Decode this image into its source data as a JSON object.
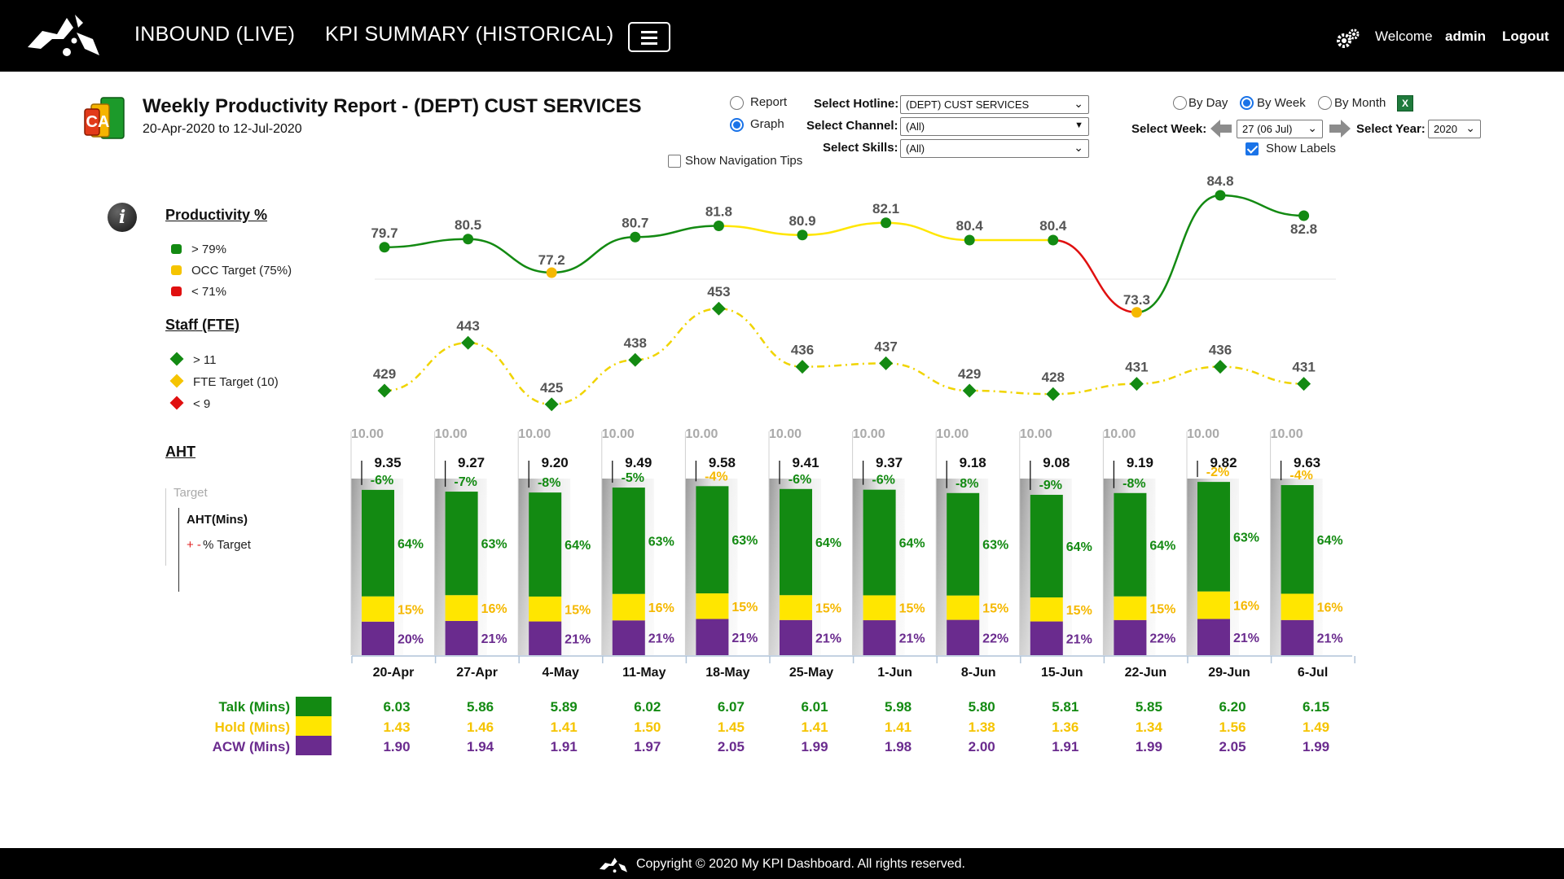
{
  "header": {
    "nav": [
      "INBOUND (LIVE)",
      "KPI SUMMARY (HISTORICAL)"
    ],
    "welcome": "Welcome",
    "user": "admin",
    "logout": "Logout"
  },
  "report": {
    "icon_text": "CA",
    "title": "Weekly Productivity Report - (DEPT) CUST SERVICES",
    "dates": "20-Apr-2020 to 12-Jul-2020"
  },
  "controls": {
    "view_modes": [
      {
        "label": "Report",
        "selected": false
      },
      {
        "label": "Graph",
        "selected": true
      }
    ],
    "show_tips": {
      "label": "Show Navigation Tips",
      "checked": false
    },
    "hotline": {
      "label": "Select Hotline:",
      "value": "(DEPT) CUST SERVICES"
    },
    "channel": {
      "label": "Select Channel:",
      "value": "(All)"
    },
    "skills": {
      "label": "Select Skills:",
      "value": "(All)"
    },
    "periods": [
      {
        "label": "By Day",
        "selected": false
      },
      {
        "label": "By Week",
        "selected": true
      },
      {
        "label": "By Month",
        "selected": false
      }
    ],
    "week": {
      "label": "Select Week:",
      "value": "27 (06 Jul)"
    },
    "year": {
      "label": "Select Year:",
      "value": "2020"
    },
    "show_labels": {
      "label": "Show Labels",
      "checked": true
    },
    "excel_icon": "excel-export-icon"
  },
  "legend": {
    "productivity": {
      "title": "Productivity %",
      "items": [
        "> 79%",
        "OCC Target (75%)",
        "< 71%"
      ]
    },
    "staff": {
      "title": "Staff (FTE)",
      "items": [
        "> 11",
        "FTE Target (10)",
        "< 9"
      ]
    },
    "aht": {
      "title": "AHT",
      "target": "Target",
      "aht_label": "AHT(Mins)",
      "pct_prefix": "+ -",
      "pct_label": "% Target"
    }
  },
  "colors": {
    "green": "#138a12",
    "yellow": "#ffe600",
    "red": "#e01010",
    "purple": "#6a2b8e",
    "orange": "#f5b800",
    "gray": "#a8a8a8"
  },
  "chart_data": {
    "type": "line+stacked-bar",
    "categories": [
      "20-Apr",
      "27-Apr",
      "4-May",
      "11-May",
      "18-May",
      "25-May",
      "1-Jun",
      "8-Jun",
      "15-Jun",
      "22-Jun",
      "29-Jun",
      "6-Jul"
    ],
    "productivity": [
      79.7,
      80.5,
      77.2,
      80.7,
      81.8,
      80.9,
      82.1,
      80.4,
      80.4,
      73.3,
      84.8,
      82.8
    ],
    "productivity_labels": [
      "79.7",
      "80.5",
      "77.2",
      "80.7",
      "81.8",
      "80.9",
      "82.1",
      "80.4",
      "80.4",
      "73.3",
      "84.8",
      "82.8"
    ],
    "staff": [
      429,
      443,
      425,
      438,
      453,
      436,
      437,
      429,
      428,
      431,
      436,
      431
    ],
    "aht_target": 10.0,
    "aht_target_label": "10.00",
    "aht": [
      "9.35",
      "9.27",
      "9.20",
      "9.49",
      "9.58",
      "9.41",
      "9.37",
      "9.18",
      "9.08",
      "9.19",
      "9.82",
      "9.63"
    ],
    "aht_vs_target": [
      "-6%",
      "-7%",
      "-8%",
      "-5%",
      "-4%",
      "-6%",
      "-6%",
      "-8%",
      "-9%",
      "-8%",
      "-2%",
      "-4%"
    ],
    "talk_pct": [
      "64%",
      "63%",
      "64%",
      "63%",
      "63%",
      "64%",
      "64%",
      "63%",
      "64%",
      "64%",
      "63%",
      "64%"
    ],
    "hold_pct": [
      "15%",
      "16%",
      "15%",
      "16%",
      "15%",
      "15%",
      "15%",
      "15%",
      "15%",
      "15%",
      "16%",
      "16%"
    ],
    "acw_pct": [
      "20%",
      "21%",
      "21%",
      "21%",
      "21%",
      "21%",
      "21%",
      "22%",
      "21%",
      "22%",
      "21%",
      "21%"
    ],
    "series": [
      {
        "name": "Talk (Mins)",
        "values": [
          "6.03",
          "5.86",
          "5.89",
          "6.02",
          "6.07",
          "6.01",
          "5.98",
          "5.80",
          "5.81",
          "5.85",
          "6.20",
          "6.15"
        ]
      },
      {
        "name": "Hold (Mins)",
        "values": [
          "1.43",
          "1.46",
          "1.41",
          "1.50",
          "1.45",
          "1.41",
          "1.41",
          "1.38",
          "1.36",
          "1.34",
          "1.56",
          "1.49"
        ]
      },
      {
        "name": "ACW (Mins)",
        "values": [
          "1.90",
          "1.94",
          "1.91",
          "1.97",
          "2.05",
          "1.99",
          "1.98",
          "2.00",
          "1.91",
          "1.99",
          "2.05",
          "1.99"
        ]
      }
    ]
  },
  "footer": {
    "text": "Copyright © 2020 My KPI Dashboard. All rights reserved."
  }
}
